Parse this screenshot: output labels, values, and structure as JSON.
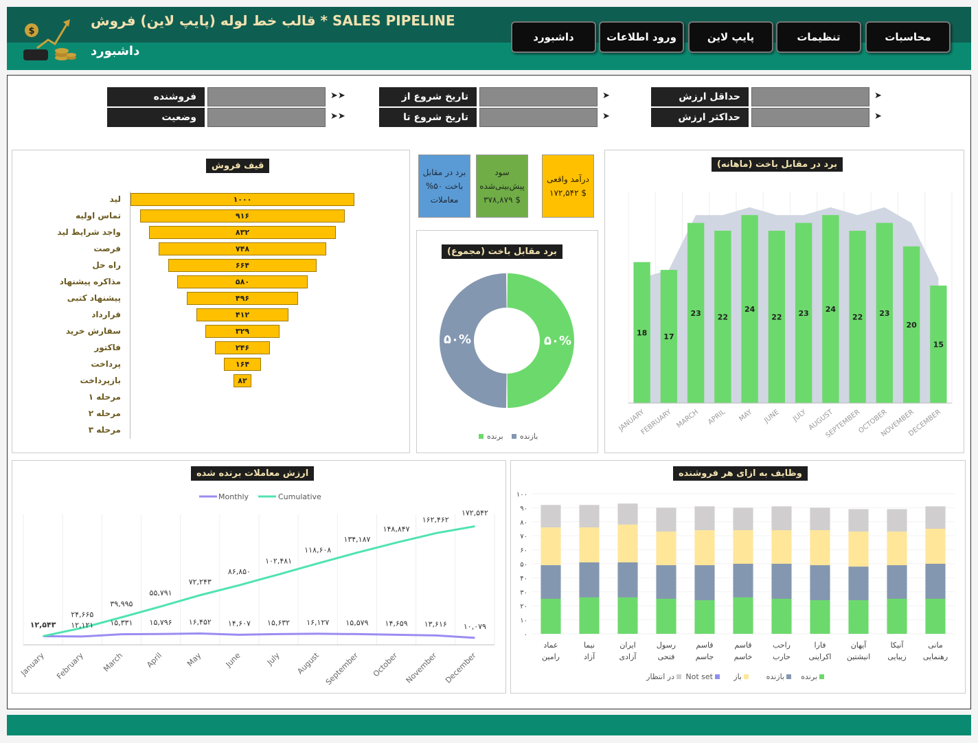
{
  "header": {
    "title": "قالب خط لوله (پایپ لاین) فروش * SALES PIPELINE",
    "subtitle": "داشبورد",
    "nav": [
      "محاسبات",
      "تنظیمات",
      "پایپ لاین",
      "ورود اطلاعات",
      "داشبورد"
    ]
  },
  "filters": {
    "seller": "فروشنده",
    "status": "وضعیت",
    "start_from": "تاریخ شروع از",
    "start_to": "تاریخ شروع تا",
    "min_value": "حداقل ارزش",
    "max_value": "حداکثر ارزش"
  },
  "kpis": {
    "revenue_label": "درآمد واقعی",
    "revenue_value": "۱۷۲,۵۴۲ $",
    "profit_label": "سود پیش‌بینی‌شده",
    "profit_value": "۳۷۸,۸۷۹ $",
    "winrate_label": "برد در مقابل باخت ۵۰% معاملات"
  },
  "funnel": {
    "title": "قیف فروش",
    "stages": [
      {
        "label": "لید",
        "value": 1000,
        "text": "۱۰۰۰"
      },
      {
        "label": "تماس اولیه",
        "value": 916,
        "text": "۹۱۶"
      },
      {
        "label": "واجد شرایط لید",
        "value": 832,
        "text": "۸۳۲"
      },
      {
        "label": "فرصت",
        "value": 748,
        "text": "۷۴۸"
      },
      {
        "label": "راه حل",
        "value": 664,
        "text": "۶۶۴"
      },
      {
        "label": "مذاکره پیشنهاد",
        "value": 580,
        "text": "۵۸۰"
      },
      {
        "label": "پیشنهاد کتبی",
        "value": 496,
        "text": "۴۹۶"
      },
      {
        "label": "قرارداد",
        "value": 412,
        "text": "۴۱۲"
      },
      {
        "label": "سفارش خرید",
        "value": 329,
        "text": "۳۲۹"
      },
      {
        "label": "فاکتور",
        "value": 246,
        "text": "۲۴۶"
      },
      {
        "label": "پرداخت",
        "value": 164,
        "text": "۱۶۴"
      },
      {
        "label": "بازپرداخت",
        "value": 82,
        "text": "۸۲"
      },
      {
        "label": "مرحله ۱",
        "value": 0,
        "text": ""
      },
      {
        "label": "مرحله ۲",
        "value": 0,
        "text": ""
      },
      {
        "label": "مرحله ۳",
        "value": 0,
        "text": ""
      }
    ]
  },
  "donut": {
    "title": "برد مقابل باخت (مجموع)",
    "win_label": "برنده",
    "loss_label": "بازنده",
    "win_pct": 50,
    "loss_pct": 50,
    "win_text": "۵۰%",
    "loss_text": "۵۰%",
    "win_color": "#6cd96c",
    "loss_color": "#8497b0"
  },
  "monthly_chart": {
    "title": "برد در مقابل باخت (ماهانه)"
  },
  "value_chart": {
    "title": "ارزش معاملات برنده شده",
    "legend_monthly": "Monthly",
    "legend_cumulative": "Cumulative"
  },
  "tasks_chart": {
    "title": "وظایف به ازای هر فروشنده",
    "legend": [
      "برنده",
      "بازنده",
      "باز",
      "Not set",
      "در انتظار"
    ]
  },
  "chart_data": [
    {
      "type": "bar",
      "title": "برد در مقابل باخت (ماهانه)",
      "categories": [
        "JANUARY",
        "FEBRUARY",
        "MARCH",
        "APRIL",
        "MAY",
        "JUNE",
        "JULY",
        "AUGUST",
        "SEPTEMBER",
        "OCTOBER",
        "NOVEMBER",
        "DECEMBER"
      ],
      "series": [
        {
          "values": [
            18,
            17,
            23,
            22,
            24,
            22,
            23,
            24,
            22,
            23,
            20,
            15
          ],
          "color": "#6cd96c"
        },
        {
          "values": [
            16,
            17,
            24,
            24,
            25,
            24,
            24,
            25,
            24,
            25,
            23,
            16
          ],
          "color": "#d0d6e2",
          "kind": "area"
        }
      ],
      "ylim": [
        0,
        27
      ]
    },
    {
      "type": "line",
      "title": "ارزش معاملات برنده شده",
      "categories": [
        "January",
        "February",
        "March",
        "April",
        "May",
        "June",
        "July",
        "August",
        "September",
        "October",
        "November",
        "December"
      ],
      "series": [
        {
          "name": "Monthly",
          "values": [
            12543,
            12121,
            15331,
            15796,
            16452,
            14607,
            15632,
            16127,
            15579,
            14659,
            13616,
            10079
          ],
          "labels": [
            "۱۲,۵۴۳",
            "۱۲,۱۲۱",
            "۱۵,۳۳۱",
            "۱۵,۷۹۶",
            "۱۶,۴۵۲",
            "۱۴,۶۰۷",
            "۱۵,۶۳۲",
            "۱۶,۱۲۷",
            "۱۵,۵۷۹",
            "۱۴,۶۵۹",
            "۱۳,۶۱۶",
            "۱۰,۰۷۹"
          ],
          "color": "#9a8cf2"
        },
        {
          "name": "Cumulative",
          "values": [
            12543,
            24665,
            39995,
            55791,
            72243,
            86850,
            102481,
            118608,
            134187,
            148847,
            162462,
            172542
          ],
          "labels": [
            "۱۲,۵۴۳",
            "۲۴,۶۶۵",
            "۳۹,۹۹۵",
            "۵۵,۷۹۱",
            "۷۲,۲۴۳",
            "۸۶,۸۵۰",
            "۱۰۲,۴۸۱",
            "۱۱۸,۶۰۸",
            "۱۳۴,۱۸۷",
            "۱۴۸,۸۴۷",
            "۱۶۲,۴۶۲",
            "۱۷۲,۵۴۲"
          ],
          "color": "#4fe3b0"
        }
      ]
    },
    {
      "type": "bar",
      "title": "وظایف به ازای هر فروشنده",
      "stacked": true,
      "categories": [
        "مانی رهنمایی",
        "آنیکا زیبایی",
        "آیهان انیشتین",
        "فارا اکراینی",
        "راحب حارب",
        "قاسم خاسم",
        "قاسم جاسم",
        "رسول فتحی",
        "ایران آزادی",
        "نیما آزاد",
        "عماد رامین"
      ],
      "series": [
        {
          "name": "برنده",
          "values": [
            25,
            25,
            24,
            24,
            25,
            26,
            24,
            25,
            26,
            26,
            25
          ],
          "color": "#6cd96c"
        },
        {
          "name": "بازنده",
          "values": [
            25,
            24,
            24,
            25,
            25,
            24,
            25,
            24,
            25,
            25,
            24
          ],
          "color": "#8497b0"
        },
        {
          "name": "باز",
          "values": [
            25,
            24,
            25,
            25,
            24,
            24,
            25,
            24,
            27,
            25,
            27
          ],
          "color": "#ffe699"
        },
        {
          "name": "Not set",
          "values": [
            0,
            0,
            0,
            0,
            0,
            0,
            0,
            0,
            0,
            0,
            0
          ],
          "color": "#8f8ff0"
        },
        {
          "name": "در انتظار",
          "values": [
            16,
            16,
            16,
            16,
            17,
            16,
            17,
            17,
            15,
            16,
            16
          ],
          "color": "#d0cece"
        }
      ],
      "ylim": [
        0,
        100
      ],
      "yticks": [
        "۰",
        "۱۰",
        "۲۰",
        "۳۰",
        "۴۰",
        "۵۰",
        "۶۰",
        "۷۰",
        "۸۰",
        "۹۰",
        "۱۰۰"
      ]
    }
  ]
}
